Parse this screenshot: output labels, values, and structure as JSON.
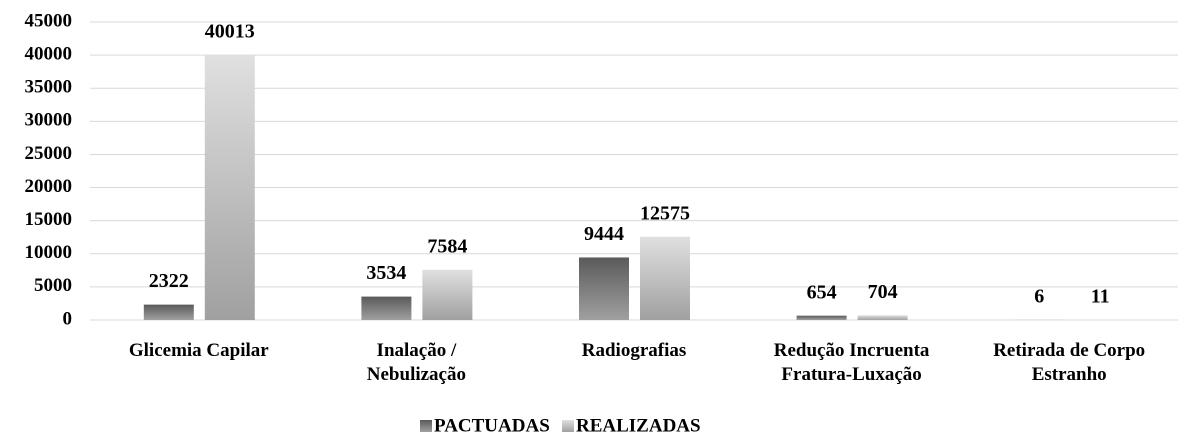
{
  "chart_data": {
    "type": "bar",
    "categories": [
      [
        "Glicemia Capilar"
      ],
      [
        "Inalação /",
        "Nebulização"
      ],
      [
        "Radiografias"
      ],
      [
        "Redução Incruenta",
        "Fratura-Luxação"
      ],
      [
        "Retirada de Corpo",
        "Estranho"
      ]
    ],
    "series": [
      {
        "name": "PACTUADAS",
        "color": "#5a5a5a",
        "values": [
          2322,
          3534,
          9444,
          654,
          6
        ]
      },
      {
        "name": "REALIZADAS",
        "color": "#e0e0e0",
        "values": [
          40013,
          7584,
          12575,
          704,
          11
        ]
      }
    ],
    "ylim": [
      0,
      45000
    ],
    "yticks": [
      0,
      5000,
      10000,
      15000,
      20000,
      25000,
      30000,
      35000,
      40000,
      45000
    ],
    "grid": true,
    "legend": "bottom"
  }
}
